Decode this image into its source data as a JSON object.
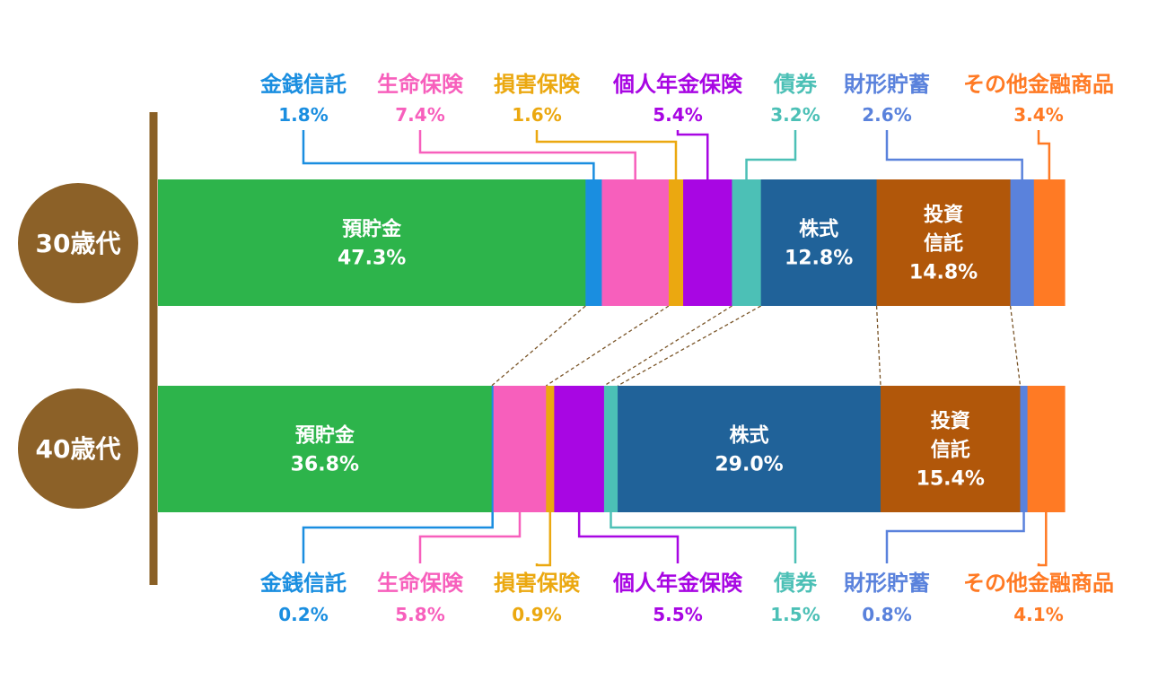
{
  "chart_data": {
    "type": "bar",
    "stacked": true,
    "orientation": "horizontal",
    "unit": "%",
    "categories": [
      "30歳代",
      "40歳代"
    ],
    "series": [
      {
        "name": "預貯金",
        "color": "#2db44b",
        "values": [
          47.3,
          36.8
        ]
      },
      {
        "name": "金銭信託",
        "color": "#1a8ee0",
        "values": [
          1.8,
          0.2
        ]
      },
      {
        "name": "生命保険",
        "color": "#f75fbc",
        "values": [
          7.4,
          5.8
        ]
      },
      {
        "name": "損害保険",
        "color": "#eba810",
        "values": [
          1.6,
          0.9
        ]
      },
      {
        "name": "個人年金保険",
        "color": "#a806e3",
        "values": [
          5.4,
          5.5
        ]
      },
      {
        "name": "債券",
        "color": "#4cc0b6",
        "values": [
          3.2,
          1.5
        ]
      },
      {
        "name": "株式",
        "color": "#206299",
        "values": [
          12.8,
          29.0
        ]
      },
      {
        "name": "投資信託",
        "color": "#b1570a",
        "values": [
          14.8,
          15.4
        ]
      },
      {
        "name": "財形貯蓄",
        "color": "#5a82dc",
        "values": [
          2.6,
          0.8
        ]
      },
      {
        "name": "その他金融商品",
        "color": "#ff7a24",
        "values": [
          3.4,
          4.1
        ]
      }
    ],
    "inside_labels": {
      "預貯金": [
        "預貯金"
      ],
      "株式": [
        "株式"
      ],
      "投資信託": [
        "投資",
        "信託"
      ]
    },
    "colors": {
      "axis_line": "#8a6026",
      "age_circle": "#8c6128",
      "connector": "#7a5528"
    }
  }
}
